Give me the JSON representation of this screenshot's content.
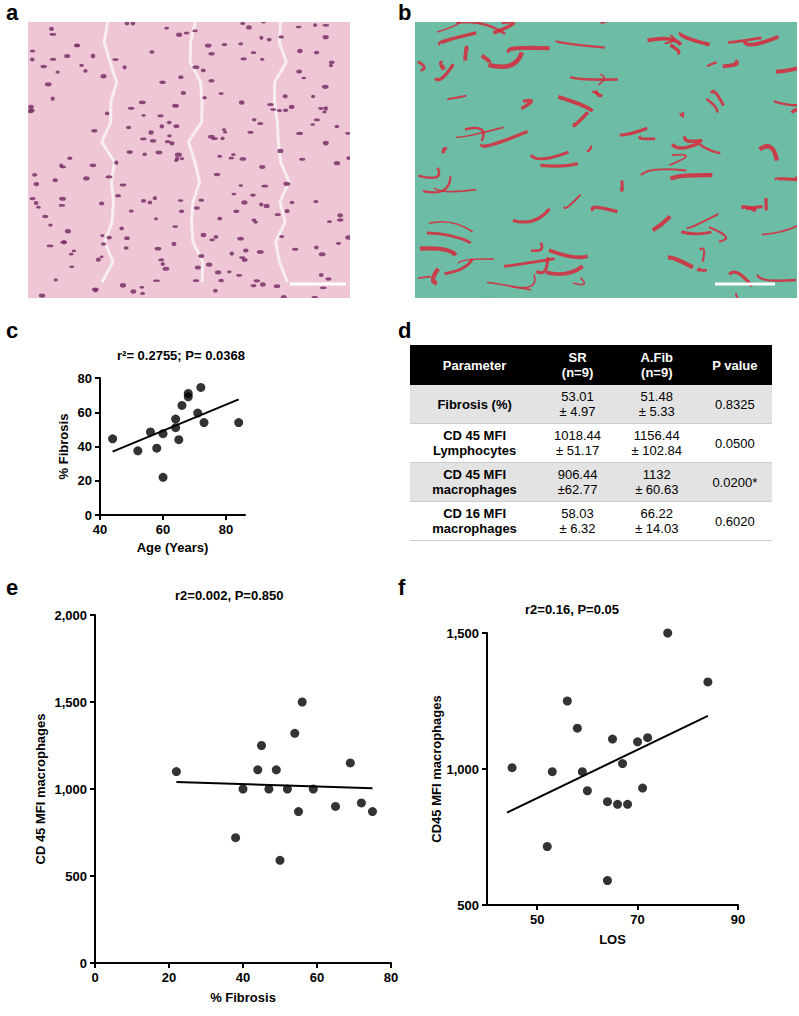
{
  "images": [
    {
      "panel": "a"
    },
    {
      "panel": "b"
    }
  ],
  "chart_data": [
    {
      "panel": "c",
      "type": "scatter",
      "annotation": "r²= 0.2755; P= 0.0368",
      "x_label": "Age (Years)",
      "y_label": "% Fibrosis",
      "color": "#000000",
      "x": [
        44,
        52,
        56,
        58,
        60,
        60,
        64,
        64,
        65,
        66,
        68,
        68,
        71,
        72,
        73,
        84
      ],
      "values": [
        44.5,
        37.5,
        48.5,
        39,
        47.5,
        22,
        51,
        56,
        44,
        64,
        71,
        69,
        59.5,
        74.5,
        54,
        54
      ],
      "fit": {
        "x": [
          44,
          84
        ],
        "y": [
          37,
          67.5
        ]
      },
      "xlim": [
        40,
        86
      ],
      "xticks": [
        40,
        60,
        80
      ],
      "ylim": [
        0,
        80
      ],
      "yticks": [
        0,
        20,
        40,
        60,
        80
      ]
    },
    {
      "panel": "e",
      "type": "scatter",
      "annotation": "r2=0.002, P=0.850",
      "x_label": "% Fibrosis",
      "y_label": "CD 45 MFI macrophages",
      "color": "#000000",
      "x": [
        22,
        38,
        40,
        44,
        45,
        47,
        49,
        50,
        52,
        54,
        55,
        56,
        59,
        65,
        69,
        72,
        75
      ],
      "values": [
        1100,
        720,
        1000,
        1110,
        1250,
        1000,
        1110,
        590,
        1000,
        1320,
        870,
        1500,
        1000,
        900,
        1150,
        920,
        870
      ],
      "fit": {
        "x": [
          22,
          75
        ],
        "y": [
          1040,
          1005
        ]
      },
      "xlim": [
        0,
        80
      ],
      "xticks": [
        0,
        20,
        40,
        60,
        80
      ],
      "ylim": [
        0,
        2000
      ],
      "yticks": [
        0,
        500,
        1000,
        1500,
        2000
      ]
    },
    {
      "panel": "f",
      "type": "scatter",
      "annotation": "r2=0.16, P=0.05",
      "x_label": "LOS",
      "y_label": "CD45 MFI macrophages",
      "color": "#000000",
      "x": [
        45,
        52,
        53,
        56,
        58,
        59,
        60,
        64,
        64,
        65,
        66,
        67,
        68,
        70,
        71,
        72,
        76,
        84
      ],
      "values": [
        1005,
        715,
        990,
        1250,
        1150,
        990,
        920,
        590,
        880,
        1110,
        870,
        1020,
        870,
        1100,
        930,
        1115,
        1500,
        1320
      ],
      "fit": {
        "x": [
          44,
          84
        ],
        "y": [
          840,
          1195
        ]
      },
      "xlim": [
        40,
        90
      ],
      "xticks": [
        50,
        70,
        90
      ],
      "ylim": [
        500,
        1500
      ],
      "yticks": [
        500,
        1000,
        1500
      ]
    }
  ],
  "table": {
    "panel": "d",
    "header": [
      [
        "Parameter"
      ],
      [
        "SR",
        "(n=9)"
      ],
      [
        "A.Fib",
        "(n=9)"
      ],
      [
        "P value"
      ]
    ],
    "rows": [
      [
        [
          "Fibrosis (%)"
        ],
        [
          "53.01",
          "± 4.97"
        ],
        [
          "51.48",
          "± 5.33"
        ],
        [
          "0.8325"
        ]
      ],
      [
        [
          "CD 45 MFI",
          "Lymphocytes"
        ],
        [
          "1018.44",
          "± 51.17"
        ],
        [
          "1156.44",
          "± 102.84"
        ],
        [
          "0.0500"
        ]
      ],
      [
        [
          "CD 45 MFI",
          "macrophages"
        ],
        [
          "906.44",
          "±62.77"
        ],
        [
          "1132",
          "± 60.63"
        ],
        [
          "0.0200*"
        ]
      ],
      [
        [
          "CD 16 MFI",
          "macrophages"
        ],
        [
          "58.03",
          "± 6.32"
        ],
        [
          "66.22",
          "± 14.03"
        ],
        [
          "0.6020"
        ]
      ]
    ]
  }
}
